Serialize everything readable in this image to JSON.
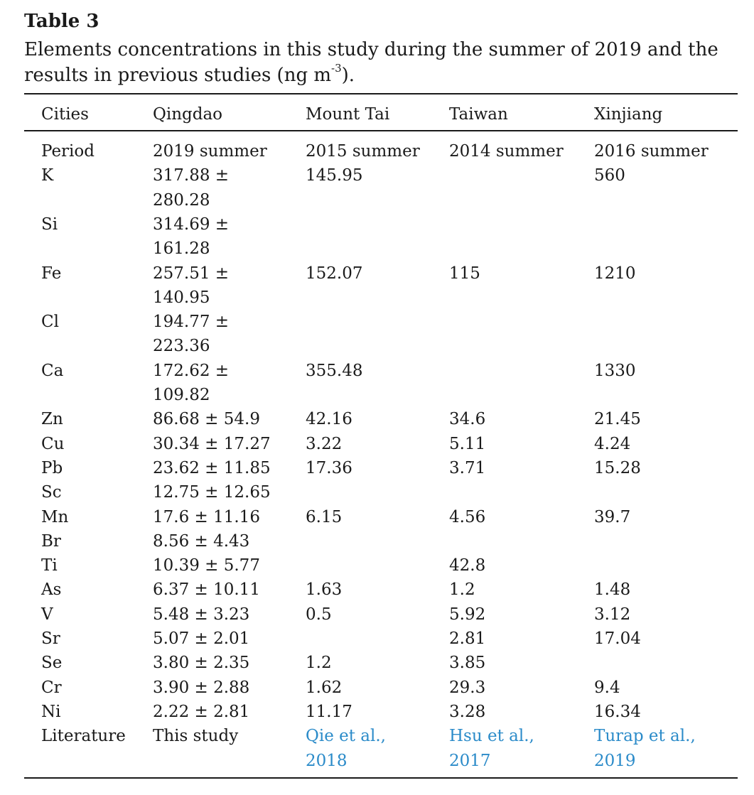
{
  "table_label": "Table 3",
  "caption_pre": "Elements concentrations in this study during the summer of 2019 and the results in previous studies (ng m",
  "caption_sup": "-3",
  "caption_post": ").",
  "headers": [
    "Cities",
    "Qingdao",
    "Mount Tai",
    "Taiwan",
    "Xinjiang"
  ],
  "period": [
    "Period",
    "2019 summer",
    "2015 summer",
    "2014 summer",
    "2016 summer"
  ],
  "rows": [
    {
      "element": "K",
      "qingdao": [
        "317.88 ±",
        "280.28"
      ],
      "mount_tai": "145.95",
      "taiwan": "",
      "xinjiang": "560"
    },
    {
      "element": "Si",
      "qingdao": [
        "314.69 ±",
        "161.28"
      ],
      "mount_tai": "",
      "taiwan": "",
      "xinjiang": ""
    },
    {
      "element": "Fe",
      "qingdao": [
        "257.51 ±",
        "140.95"
      ],
      "mount_tai": "152.07",
      "taiwan": "115",
      "xinjiang": "1210"
    },
    {
      "element": "Cl",
      "qingdao": [
        "194.77 ±",
        "223.36"
      ],
      "mount_tai": "",
      "taiwan": "",
      "xinjiang": ""
    },
    {
      "element": "Ca",
      "qingdao": [
        "172.62 ±",
        "109.82"
      ],
      "mount_tai": "355.48",
      "taiwan": "",
      "xinjiang": "1330"
    },
    {
      "element": "Zn",
      "qingdao": [
        "86.68 ± 54.9"
      ],
      "mount_tai": "42.16",
      "taiwan": "34.6",
      "xinjiang": "21.45"
    },
    {
      "element": "Cu",
      "qingdao": [
        "30.34 ± 17.27"
      ],
      "mount_tai": "3.22",
      "taiwan": "5.11",
      "xinjiang": "4.24"
    },
    {
      "element": "Pb",
      "qingdao": [
        "23.62 ± 11.85"
      ],
      "mount_tai": "17.36",
      "taiwan": "3.71",
      "xinjiang": "15.28"
    },
    {
      "element": "Sc",
      "qingdao": [
        "12.75 ± 12.65"
      ],
      "mount_tai": "",
      "taiwan": "",
      "xinjiang": ""
    },
    {
      "element": "Mn",
      "qingdao": [
        "17.6 ± 11.16"
      ],
      "mount_tai": "6.15",
      "taiwan": "4.56",
      "xinjiang": "39.7"
    },
    {
      "element": "Br",
      "qingdao": [
        "8.56 ± 4.43"
      ],
      "mount_tai": "",
      "taiwan": "",
      "xinjiang": ""
    },
    {
      "element": "Ti",
      "qingdao": [
        "10.39 ± 5.77"
      ],
      "mount_tai": "",
      "taiwan": "42.8",
      "xinjiang": ""
    },
    {
      "element": "As",
      "qingdao": [
        "6.37 ± 10.11"
      ],
      "mount_tai": "1.63",
      "taiwan": "1.2",
      "xinjiang": "1.48"
    },
    {
      "element": "V",
      "qingdao": [
        "5.48 ± 3.23"
      ],
      "mount_tai": "0.5",
      "taiwan": "5.92",
      "xinjiang": "3.12"
    },
    {
      "element": "Sr",
      "qingdao": [
        "5.07 ± 2.01"
      ],
      "mount_tai": "",
      "taiwan": "2.81",
      "xinjiang": "17.04"
    },
    {
      "element": "Se",
      "qingdao": [
        "3.80 ± 2.35"
      ],
      "mount_tai": "1.2",
      "taiwan": "3.85",
      "xinjiang": ""
    },
    {
      "element": "Cr",
      "qingdao": [
        "3.90 ± 2.88"
      ],
      "mount_tai": "1.62",
      "taiwan": "29.3",
      "xinjiang": "9.4"
    },
    {
      "element": "Ni",
      "qingdao": [
        "2.22 ± 2.81"
      ],
      "mount_tai": "11.17",
      "taiwan": "3.28",
      "xinjiang": "16.34"
    }
  ],
  "literature": {
    "label": "Literature",
    "qingdao": "This study",
    "mount_tai": [
      "Qie et al.,",
      "2018"
    ],
    "taiwan": [
      "Hsu et al.,",
      "2017"
    ],
    "xinjiang": [
      "Turap et al.,",
      "2019"
    ]
  },
  "colors": {
    "text": "#1a1a1a",
    "link": "#2b8bc9",
    "rule": "#1a1a1a"
  }
}
